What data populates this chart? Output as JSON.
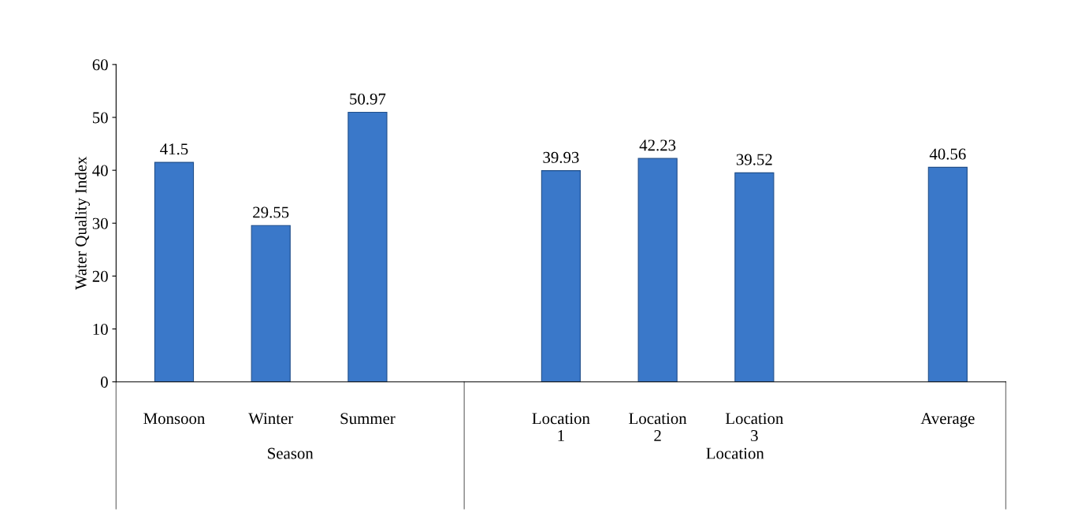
{
  "chart_data": {
    "type": "bar",
    "ylabel": "Water Quality Index",
    "categories": [
      "Monsoon",
      "Winter",
      "Summer",
      null,
      "Location\n1",
      "Location\n2",
      "Location\n3",
      null,
      "Average"
    ],
    "values": [
      41.5,
      29.55,
      50.97,
      null,
      39.93,
      42.23,
      39.52,
      null,
      40.56
    ],
    "color": "#3a78c9",
    "ylim": [
      0,
      60
    ],
    "yticks": [
      0,
      10,
      20,
      30,
      40,
      50,
      60
    ],
    "data_labels": true,
    "annotations": [
      "Season",
      "Location"
    ]
  }
}
